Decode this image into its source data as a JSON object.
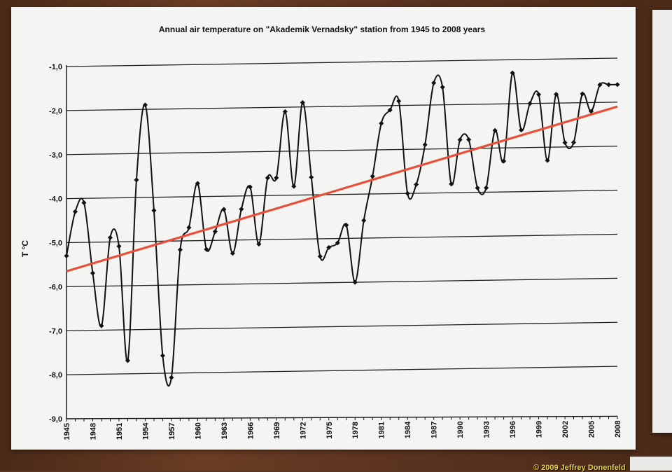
{
  "watermark": "© 2009 Jeffrey Donenfeld",
  "colors": {
    "trend": "#e8503a",
    "series": "#111111",
    "grid": "#222222"
  },
  "chart_data": {
    "type": "line",
    "title": "Annual air temperature on \"Akademik Vernadsky\" station from 1945 to 2008 years",
    "xlabel": "",
    "ylabel": "T °C",
    "ylim": [
      -9.0,
      -1.0
    ],
    "yticks": [
      "-1,0",
      "-2,0",
      "-3,0",
      "-4,0",
      "-5,0",
      "-6,0",
      "-7,0",
      "-8,0",
      "-9,0"
    ],
    "xticks": [
      "1945",
      "1948",
      "1951",
      "1954",
      "1957",
      "1960",
      "1963",
      "1966",
      "1969",
      "1972",
      "1975",
      "1978",
      "1981",
      "1984",
      "1987",
      "1990",
      "1993",
      "1996",
      "1999",
      "2002",
      "2005",
      "2008"
    ],
    "grid": true,
    "legend": "none",
    "series": [
      {
        "x": [
          1945,
          1946,
          1947,
          1948,
          1949,
          1950,
          1951,
          1952,
          1953,
          1954,
          1955,
          1956,
          1957,
          1958,
          1959,
          1960,
          1961,
          1962,
          1963,
          1964,
          1965,
          1966,
          1967,
          1968,
          1969,
          1970,
          1971,
          1972,
          1973,
          1974,
          1975,
          1976,
          1977,
          1978,
          1979,
          1980,
          1981,
          1982,
          1983,
          1984,
          1985,
          1986,
          1987,
          1988,
          1989,
          1990,
          1991,
          1992,
          1993,
          1994,
          1995,
          1996,
          1997,
          1998,
          1999,
          2000,
          2001,
          2002,
          2003,
          2004,
          2005,
          2006,
          2007,
          2008
        ],
        "values": [
          -5.3,
          -4.3,
          -4.1,
          -5.7,
          -6.9,
          -4.9,
          -5.1,
          -7.7,
          -3.6,
          -1.9,
          -4.3,
          -7.6,
          -8.1,
          -5.2,
          -4.7,
          -3.7,
          -5.2,
          -4.8,
          -4.3,
          -5.3,
          -4.3,
          -3.8,
          -5.1,
          -3.6,
          -3.6,
          -2.1,
          -3.8,
          -1.9,
          -3.6,
          -5.4,
          -5.2,
          -5.1,
          -4.7,
          -6.0,
          -4.6,
          -3.6,
          -2.4,
          -2.1,
          -1.9,
          -4.0,
          -3.8,
          -2.9,
          -1.5,
          -1.6,
          -3.8,
          -2.8,
          -2.8,
          -3.9,
          -3.9,
          -2.6,
          -3.3,
          -1.3,
          -2.6,
          -2.0,
          -1.8,
          -3.3,
          -1.8,
          -2.9,
          -2.9,
          -1.8,
          -2.2,
          -1.6,
          -1.6,
          -1.6
        ]
      },
      {
        "name": "",
        "type": "trend",
        "x": [
          1945,
          2008
        ],
        "values": [
          -5.65,
          -2.1
        ]
      }
    ]
  }
}
